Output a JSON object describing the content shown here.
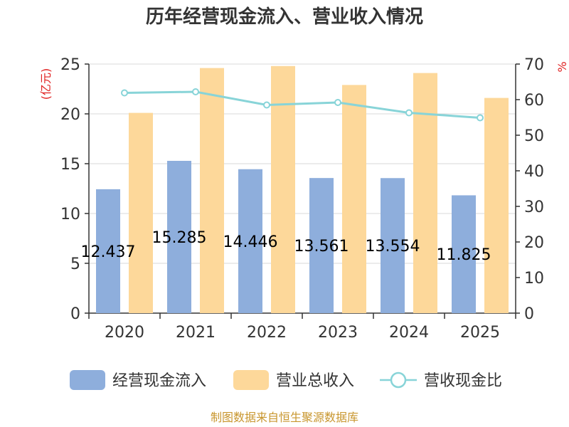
{
  "chart_data": {
    "type": "bar",
    "title": "历年经营现金流入、营业收入情况",
    "categories": [
      "2020",
      "2021",
      "2022",
      "2023",
      "2024",
      "2025"
    ],
    "series": [
      {
        "name": "经营现金流入",
        "type": "bar",
        "axis": "left",
        "color": "#8eaedc",
        "values": [
          12.437,
          15.285,
          14.446,
          13.561,
          13.554,
          11.825
        ],
        "labels": [
          "12.437",
          "15.285",
          "14.446",
          "13.561",
          "13.554",
          "11.825"
        ]
      },
      {
        "name": "营业总收入",
        "type": "bar",
        "axis": "left",
        "color": "#fdd89a",
        "values": [
          20.1,
          24.6,
          24.8,
          22.9,
          24.1,
          21.6
        ]
      },
      {
        "name": "营收现金比",
        "type": "line",
        "axis": "right",
        "color": "#88d4d8",
        "values": [
          61.9,
          62.2,
          58.5,
          59.2,
          56.3,
          54.9
        ]
      }
    ],
    "y_left": {
      "label": "(亿元)",
      "ylim": [
        0,
        25
      ],
      "ticks": [
        "0",
        "5",
        "10",
        "15",
        "20",
        "25"
      ]
    },
    "y_right": {
      "label": "%",
      "ylim": [
        0,
        70
      ],
      "ticks": [
        "0",
        "10",
        "20",
        "30",
        "40",
        "50",
        "60",
        "70"
      ]
    },
    "grid": true,
    "legend": "bottom"
  },
  "source": "制图数据来自恒生聚源数据库"
}
